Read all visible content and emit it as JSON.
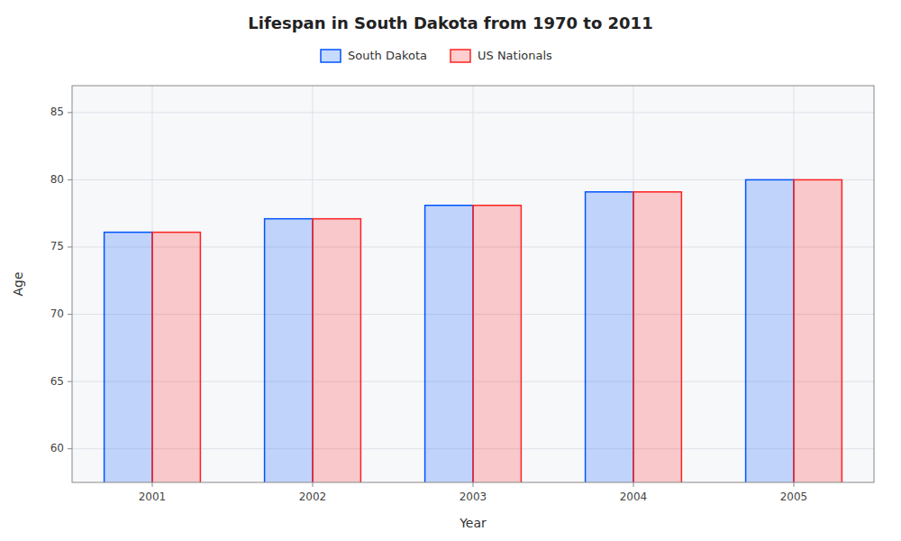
{
  "chart_data": {
    "type": "bar",
    "title": "Lifespan in South Dakota from 1970 to 2011",
    "x_label": "Year",
    "y_label": "Age",
    "categories": [
      "2001",
      "2002",
      "2003",
      "2004",
      "2005"
    ],
    "series": [
      {
        "name": "South Dakota",
        "color": "#0055ff",
        "values": [
          76.1,
          77.1,
          78.1,
          79.1,
          80.0
        ]
      },
      {
        "name": "US Nationals",
        "color": "#ff2222",
        "values": [
          76.1,
          77.1,
          78.1,
          79.1,
          80.0
        ]
      }
    ],
    "ylim": [
      57.5,
      87.0
    ],
    "yticks": [
      60,
      65,
      70,
      75,
      80,
      85
    ],
    "grid": true,
    "legend": "top"
  }
}
